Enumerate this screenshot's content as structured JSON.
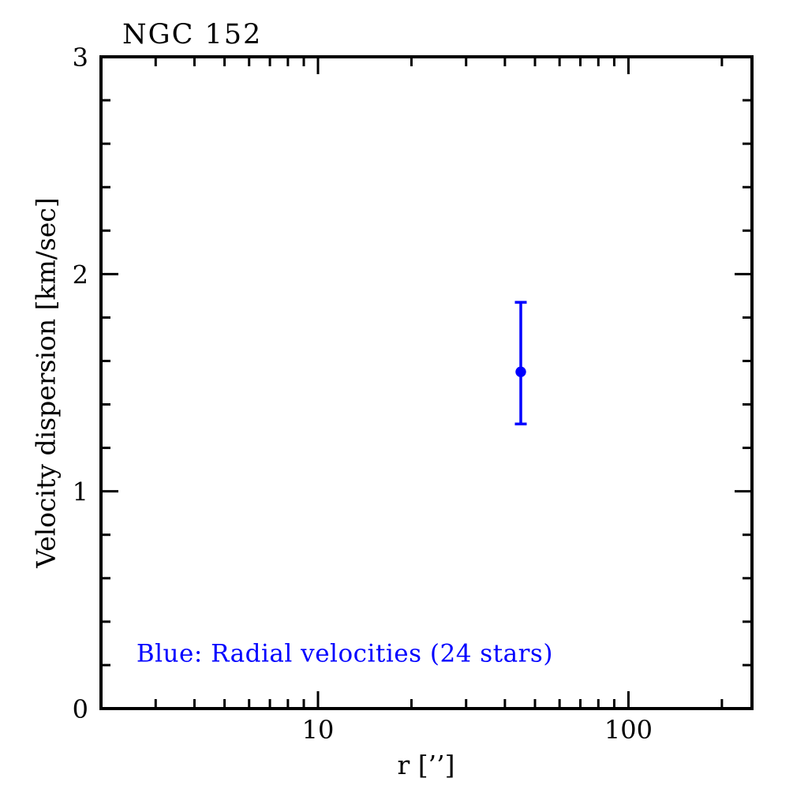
{
  "chart_data": {
    "type": "scatter",
    "title": "NGC 152",
    "xlabel": "r [’’]",
    "ylabel": "Velocity dispersion [km/sec]",
    "x_scale": "log",
    "y_scale": "linear",
    "xlim": [
      2,
      250
    ],
    "ylim": [
      0,
      3
    ],
    "grid": false,
    "tick_direction": "in",
    "mirrored_axes": true,
    "axis_color": "#000000",
    "background": "#ffffff",
    "x_major_ticks": [
      10,
      100
    ],
    "x_major_tick_labels": [
      "10",
      "100"
    ],
    "x_minor_ticks": [
      3,
      4,
      5,
      6,
      7,
      8,
      9,
      20,
      30,
      40,
      50,
      60,
      70,
      80,
      90,
      200
    ],
    "y_major_ticks": [
      0,
      1,
      2,
      3
    ],
    "y_major_tick_labels": [
      "0",
      "1",
      "2",
      "3"
    ],
    "y_minor_tick_step": 0.2,
    "series": [
      {
        "name": "Radial velocities",
        "color": "#0000ff",
        "marker": "filled-circle",
        "points": [
          {
            "x": 45,
            "y": 1.55,
            "err_plus": 0.32,
            "err_minus": 0.24
          }
        ]
      }
    ],
    "annotation": {
      "text": "Blue: Radial velocities (24 stars)",
      "color": "#0000ff",
      "x": 2.6,
      "y": 0.25
    }
  }
}
